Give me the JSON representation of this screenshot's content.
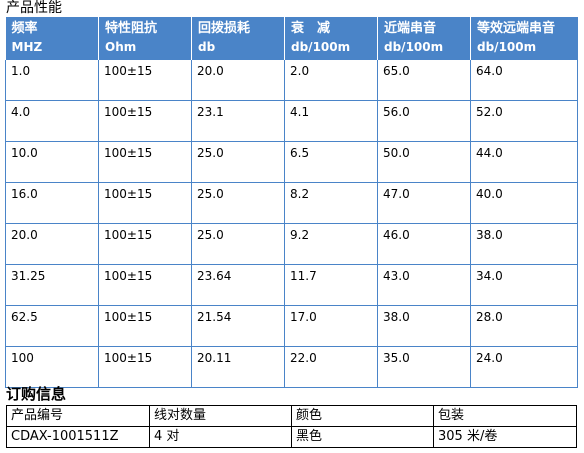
{
  "performance": {
    "title": "产品性能",
    "headers": [
      {
        "label": "频率",
        "unit": "MHZ"
      },
      {
        "label": "特性阻抗",
        "unit": "Ohm"
      },
      {
        "label": "回拨损耗",
        "unit": "db"
      },
      {
        "label": "衰　减",
        "unit": "db/100m"
      },
      {
        "label": "近端串音",
        "unit": "db/100m"
      },
      {
        "label": "等效远端串音",
        "unit": "db/100m"
      }
    ],
    "rows": [
      [
        "1.0",
        "100±15",
        "20.0",
        "2.0",
        "65.0",
        "64.0"
      ],
      [
        "4.0",
        "100±15",
        "23.1",
        "4.1",
        "56.0",
        "52.0"
      ],
      [
        "10.0",
        "100±15",
        "25.0",
        "6.5",
        "50.0",
        "44.0"
      ],
      [
        "16.0",
        "100±15",
        "25.0",
        "8.2",
        "47.0",
        "40.0"
      ],
      [
        "20.0",
        "100±15",
        "25.0",
        "9.2",
        "46.0",
        "38.0"
      ],
      [
        "31.25",
        "100±15",
        "23.64",
        "11.7",
        "43.0",
        "34.0"
      ],
      [
        "62.5",
        "100±15",
        "21.54",
        "17.0",
        "38.0",
        "28.0"
      ],
      [
        "100",
        "100±15",
        "20.11",
        "22.0",
        "35.0",
        "24.0"
      ]
    ]
  },
  "order": {
    "title": "订购信息",
    "headers": [
      "产品编号",
      "线对数量",
      "颜色",
      "包装"
    ],
    "row": [
      "CDAX-1001511Z",
      "4 对",
      "黑色",
      "305 米/卷"
    ]
  },
  "colors": {
    "header_bg": "#4a84c8",
    "header_text": "#ffffff",
    "grid_line": "#4a84c8"
  }
}
